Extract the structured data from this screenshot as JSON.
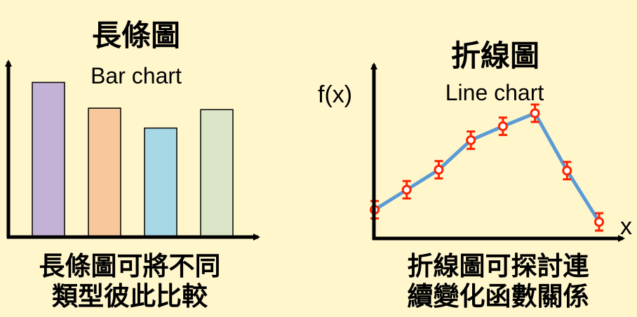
{
  "bar_panel": {
    "title": "長條圖",
    "subtitle": "Bar chart",
    "caption_line1": "長條圖可將不同",
    "caption_line2": "類型彼此比較"
  },
  "line_panel": {
    "title": "折線圖",
    "subtitle": "Line chart",
    "y_axis_label": "f(x)",
    "x_axis_label": "x",
    "caption_line1": "折線圖可探討連",
    "caption_line2": "續變化函數關係"
  },
  "chart_data": [
    {
      "type": "bar",
      "categories": [
        "",
        "",
        "",
        ""
      ],
      "values": [
        210,
        175,
        148,
        173
      ],
      "colors": [
        "#c3b1d6",
        "#f9c79c",
        "#a6d8e6",
        "#dbe5c7"
      ],
      "title": "長條圖",
      "subtitle": "Bar chart",
      "ylim": [
        0,
        240
      ]
    },
    {
      "type": "line",
      "x": [
        1,
        2,
        3,
        4,
        5,
        6,
        7,
        8
      ],
      "y": [
        33,
        56,
        79,
        113,
        129,
        144,
        78,
        19
      ],
      "error": 10,
      "line_color": "#5b9bd5",
      "marker_color": "#ff2200",
      "title": "折線圖",
      "subtitle": "Line chart",
      "xlabel": "x",
      "ylabel": "f(x)",
      "ylim": [
        0,
        200
      ]
    }
  ]
}
